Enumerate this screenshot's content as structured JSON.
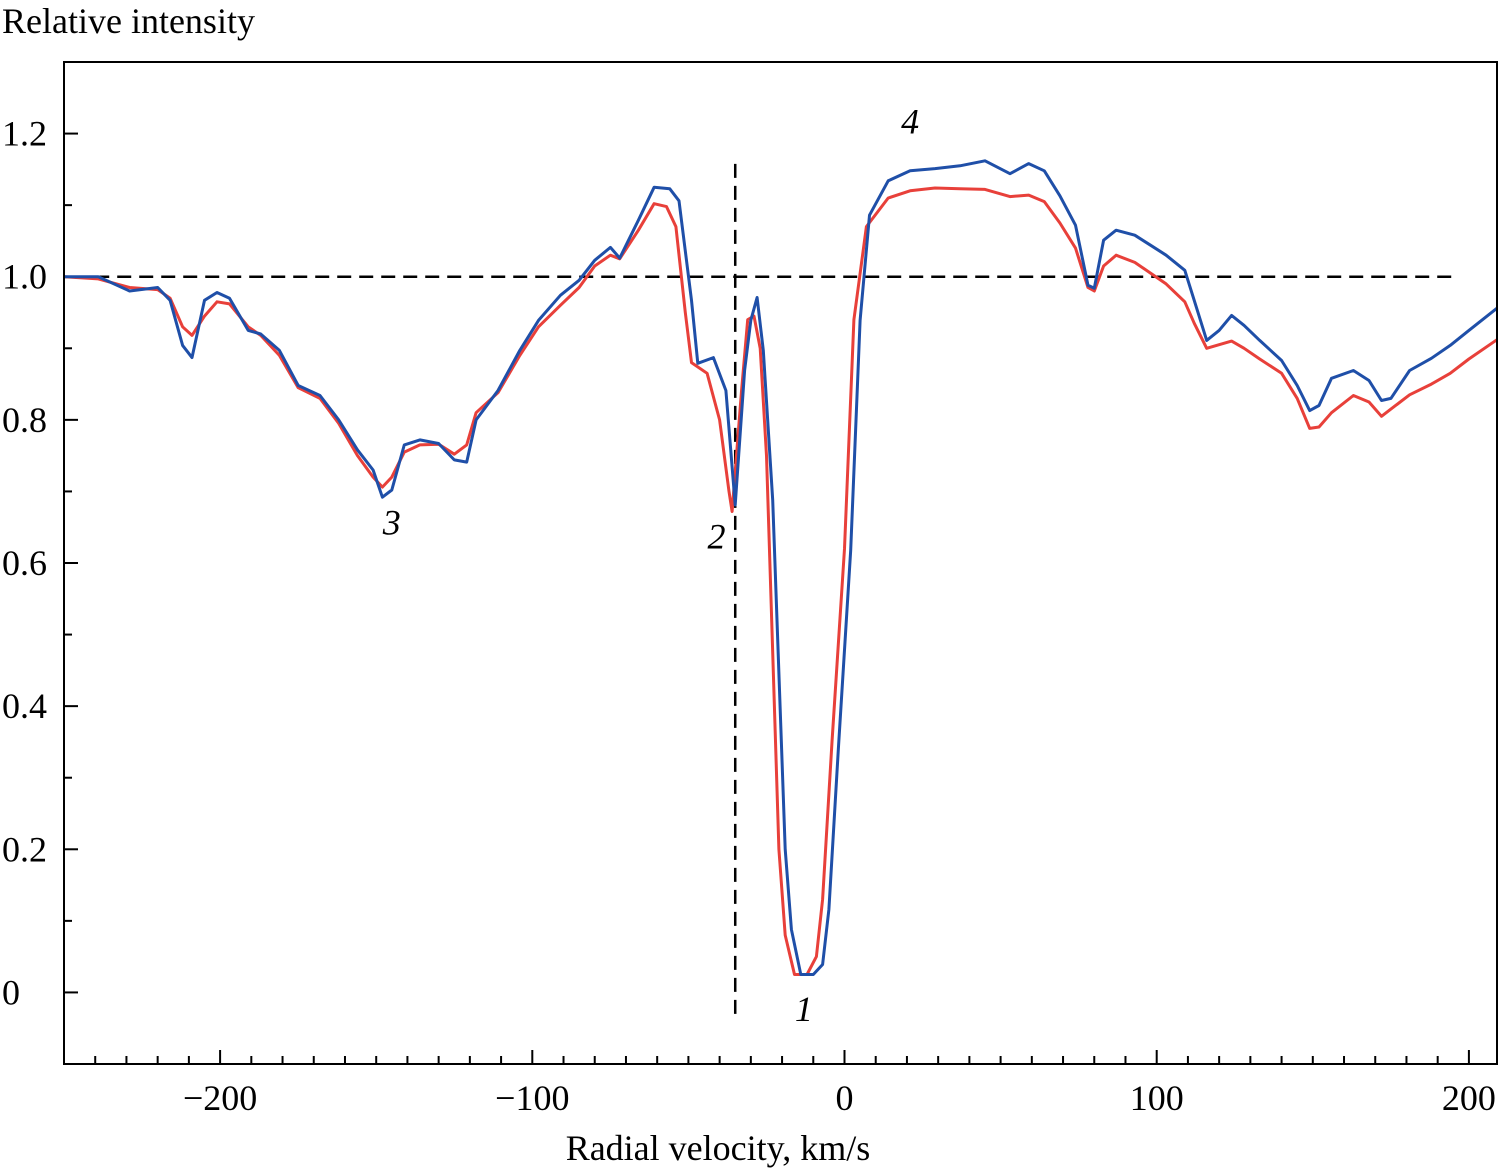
{
  "chart_data": {
    "type": "line",
    "title": "",
    "xlabel": "Radial velocity, km/s",
    "ylabel": "Relative intensity",
    "xlim": [
      -250,
      209
    ],
    "ylim": [
      -0.1,
      1.3
    ],
    "xticks": [
      -200,
      -100,
      0,
      100,
      200
    ],
    "xtick_labels": [
      "−200",
      "−100",
      "0",
      "100",
      "200"
    ],
    "yticks": [
      0,
      0.2,
      0.4,
      0.6,
      0.8,
      1.0,
      1.2
    ],
    "ytick_labels": [
      "0",
      "0.2",
      "0.4",
      "0.6",
      "0.8",
      "1.0",
      "1.2"
    ],
    "grid": false,
    "series": [
      {
        "name": "blue",
        "color": "#1f4fa8",
        "points": [
          [
            -250,
            1.0
          ],
          [
            -239,
            1.0
          ],
          [
            -229,
            0.98
          ],
          [
            -220,
            0.985
          ],
          [
            -216,
            0.967
          ],
          [
            -212,
            0.904
          ],
          [
            -209,
            0.887
          ],
          [
            -205,
            0.967
          ],
          [
            -201,
            0.978
          ],
          [
            -197,
            0.97
          ],
          [
            -191,
            0.925
          ],
          [
            -187,
            0.92
          ],
          [
            -181,
            0.897
          ],
          [
            -175,
            0.848
          ],
          [
            -168,
            0.834
          ],
          [
            -162,
            0.8
          ],
          [
            -156,
            0.758
          ],
          [
            -151,
            0.73
          ],
          [
            -148,
            0.692
          ],
          [
            -145,
            0.702
          ],
          [
            -141,
            0.765
          ],
          [
            -136,
            0.772
          ],
          [
            -130,
            0.767
          ],
          [
            -125,
            0.744
          ],
          [
            -121,
            0.741
          ],
          [
            -118,
            0.8
          ],
          [
            -111,
            0.841
          ],
          [
            -104,
            0.897
          ],
          [
            -98,
            0.939
          ],
          [
            -91,
            0.974
          ],
          [
            -85,
            0.995
          ],
          [
            -80,
            1.023
          ],
          [
            -75,
            1.041
          ],
          [
            -72,
            1.026
          ],
          [
            -66,
            1.079
          ],
          [
            -61,
            1.125
          ],
          [
            -56,
            1.123
          ],
          [
            -53,
            1.106
          ],
          [
            -49,
            0.967
          ],
          [
            -47,
            0.879
          ],
          [
            -42,
            0.887
          ],
          [
            -38,
            0.841
          ],
          [
            -35,
            0.681
          ],
          [
            -32,
            0.869
          ],
          [
            -30,
            0.939
          ],
          [
            -28,
            0.971
          ],
          [
            -26,
            0.897
          ],
          [
            -23,
            0.688
          ],
          [
            -19,
            0.2
          ],
          [
            -17,
            0.088
          ],
          [
            -14,
            0.025
          ],
          [
            -10,
            0.025
          ],
          [
            -7,
            0.039
          ],
          [
            -5,
            0.116
          ],
          [
            -2,
            0.339
          ],
          [
            2,
            0.618
          ],
          [
            5,
            0.939
          ],
          [
            8,
            1.086
          ],
          [
            14,
            1.134
          ],
          [
            21,
            1.148
          ],
          [
            29,
            1.151
          ],
          [
            37,
            1.155
          ],
          [
            45,
            1.162
          ],
          [
            53,
            1.144
          ],
          [
            59,
            1.158
          ],
          [
            64,
            1.148
          ],
          [
            69,
            1.113
          ],
          [
            74,
            1.072
          ],
          [
            78,
            0.988
          ],
          [
            80,
            0.984
          ],
          [
            83,
            1.051
          ],
          [
            87,
            1.065
          ],
          [
            93,
            1.058
          ],
          [
            98,
            1.044
          ],
          [
            103,
            1.03
          ],
          [
            109,
            1.009
          ],
          [
            112,
            0.967
          ],
          [
            116,
            0.911
          ],
          [
            120,
            0.925
          ],
          [
            124,
            0.946
          ],
          [
            128,
            0.932
          ],
          [
            133,
            0.911
          ],
          [
            140,
            0.883
          ],
          [
            145,
            0.848
          ],
          [
            149,
            0.813
          ],
          [
            152,
            0.82
          ],
          [
            156,
            0.858
          ],
          [
            163,
            0.869
          ],
          [
            168,
            0.855
          ],
          [
            172,
            0.827
          ],
          [
            175,
            0.83
          ],
          [
            181,
            0.869
          ],
          [
            188,
            0.886
          ],
          [
            194,
            0.904
          ],
          [
            200,
            0.925
          ],
          [
            209,
            0.956
          ]
        ]
      },
      {
        "name": "red",
        "color": "#e8403a",
        "points": [
          [
            -250,
            1.0
          ],
          [
            -239,
            0.997
          ],
          [
            -229,
            0.985
          ],
          [
            -220,
            0.982
          ],
          [
            -216,
            0.97
          ],
          [
            -212,
            0.93
          ],
          [
            -209,
            0.918
          ],
          [
            -205,
            0.945
          ],
          [
            -201,
            0.965
          ],
          [
            -197,
            0.962
          ],
          [
            -191,
            0.93
          ],
          [
            -187,
            0.918
          ],
          [
            -181,
            0.89
          ],
          [
            -175,
            0.845
          ],
          [
            -168,
            0.83
          ],
          [
            -162,
            0.795
          ],
          [
            -156,
            0.75
          ],
          [
            -151,
            0.72
          ],
          [
            -148,
            0.706
          ],
          [
            -145,
            0.72
          ],
          [
            -141,
            0.755
          ],
          [
            -136,
            0.765
          ],
          [
            -130,
            0.766
          ],
          [
            -125,
            0.752
          ],
          [
            -121,
            0.765
          ],
          [
            -118,
            0.81
          ],
          [
            -111,
            0.838
          ],
          [
            -104,
            0.89
          ],
          [
            -98,
            0.93
          ],
          [
            -91,
            0.96
          ],
          [
            -85,
            0.985
          ],
          [
            -80,
            1.015
          ],
          [
            -75,
            1.03
          ],
          [
            -72,
            1.025
          ],
          [
            -66,
            1.065
          ],
          [
            -61,
            1.102
          ],
          [
            -57,
            1.098
          ],
          [
            -54,
            1.07
          ],
          [
            -51,
            0.95
          ],
          [
            -49,
            0.88
          ],
          [
            -44,
            0.865
          ],
          [
            -40,
            0.8
          ],
          [
            -37,
            0.7
          ],
          [
            -36,
            0.672
          ],
          [
            -33,
            0.84
          ],
          [
            -31,
            0.94
          ],
          [
            -29,
            0.945
          ],
          [
            -27,
            0.9
          ],
          [
            -25,
            0.75
          ],
          [
            -21,
            0.2
          ],
          [
            -19,
            0.08
          ],
          [
            -16,
            0.025
          ],
          [
            -12,
            0.025
          ],
          [
            -9,
            0.05
          ],
          [
            -7,
            0.13
          ],
          [
            -4,
            0.35
          ],
          [
            0,
            0.62
          ],
          [
            3,
            0.94
          ],
          [
            7,
            1.07
          ],
          [
            14,
            1.11
          ],
          [
            21,
            1.12
          ],
          [
            29,
            1.124
          ],
          [
            37,
            1.123
          ],
          [
            45,
            1.122
          ],
          [
            53,
            1.112
          ],
          [
            59,
            1.114
          ],
          [
            64,
            1.105
          ],
          [
            69,
            1.075
          ],
          [
            74,
            1.04
          ],
          [
            78,
            0.985
          ],
          [
            80,
            0.98
          ],
          [
            83,
            1.015
          ],
          [
            87,
            1.03
          ],
          [
            93,
            1.02
          ],
          [
            98,
            1.005
          ],
          [
            103,
            0.99
          ],
          [
            109,
            0.965
          ],
          [
            112,
            0.935
          ],
          [
            116,
            0.9
          ],
          [
            120,
            0.905
          ],
          [
            124,
            0.91
          ],
          [
            128,
            0.9
          ],
          [
            133,
            0.885
          ],
          [
            140,
            0.865
          ],
          [
            145,
            0.83
          ],
          [
            149,
            0.788
          ],
          [
            152,
            0.79
          ],
          [
            156,
            0.81
          ],
          [
            163,
            0.834
          ],
          [
            168,
            0.825
          ],
          [
            172,
            0.805
          ],
          [
            175,
            0.815
          ],
          [
            181,
            0.835
          ],
          [
            188,
            0.85
          ],
          [
            194,
            0.865
          ],
          [
            200,
            0.885
          ],
          [
            209,
            0.912
          ]
        ]
      }
    ],
    "reference_lines": [
      {
        "orientation": "horizontal",
        "value": 1.0,
        "from": -240,
        "to": 195
      },
      {
        "orientation": "vertical",
        "value": -35,
        "from": -0.03,
        "to": 1.16
      }
    ],
    "annotations": [
      {
        "text": "1",
        "x": -13,
        "y": -0.04
      },
      {
        "text": "2",
        "x": -41,
        "y": 0.62
      },
      {
        "text": "3",
        "x": -145,
        "y": 0.64
      },
      {
        "text": "4",
        "x": 21,
        "y": 1.2
      }
    ]
  }
}
